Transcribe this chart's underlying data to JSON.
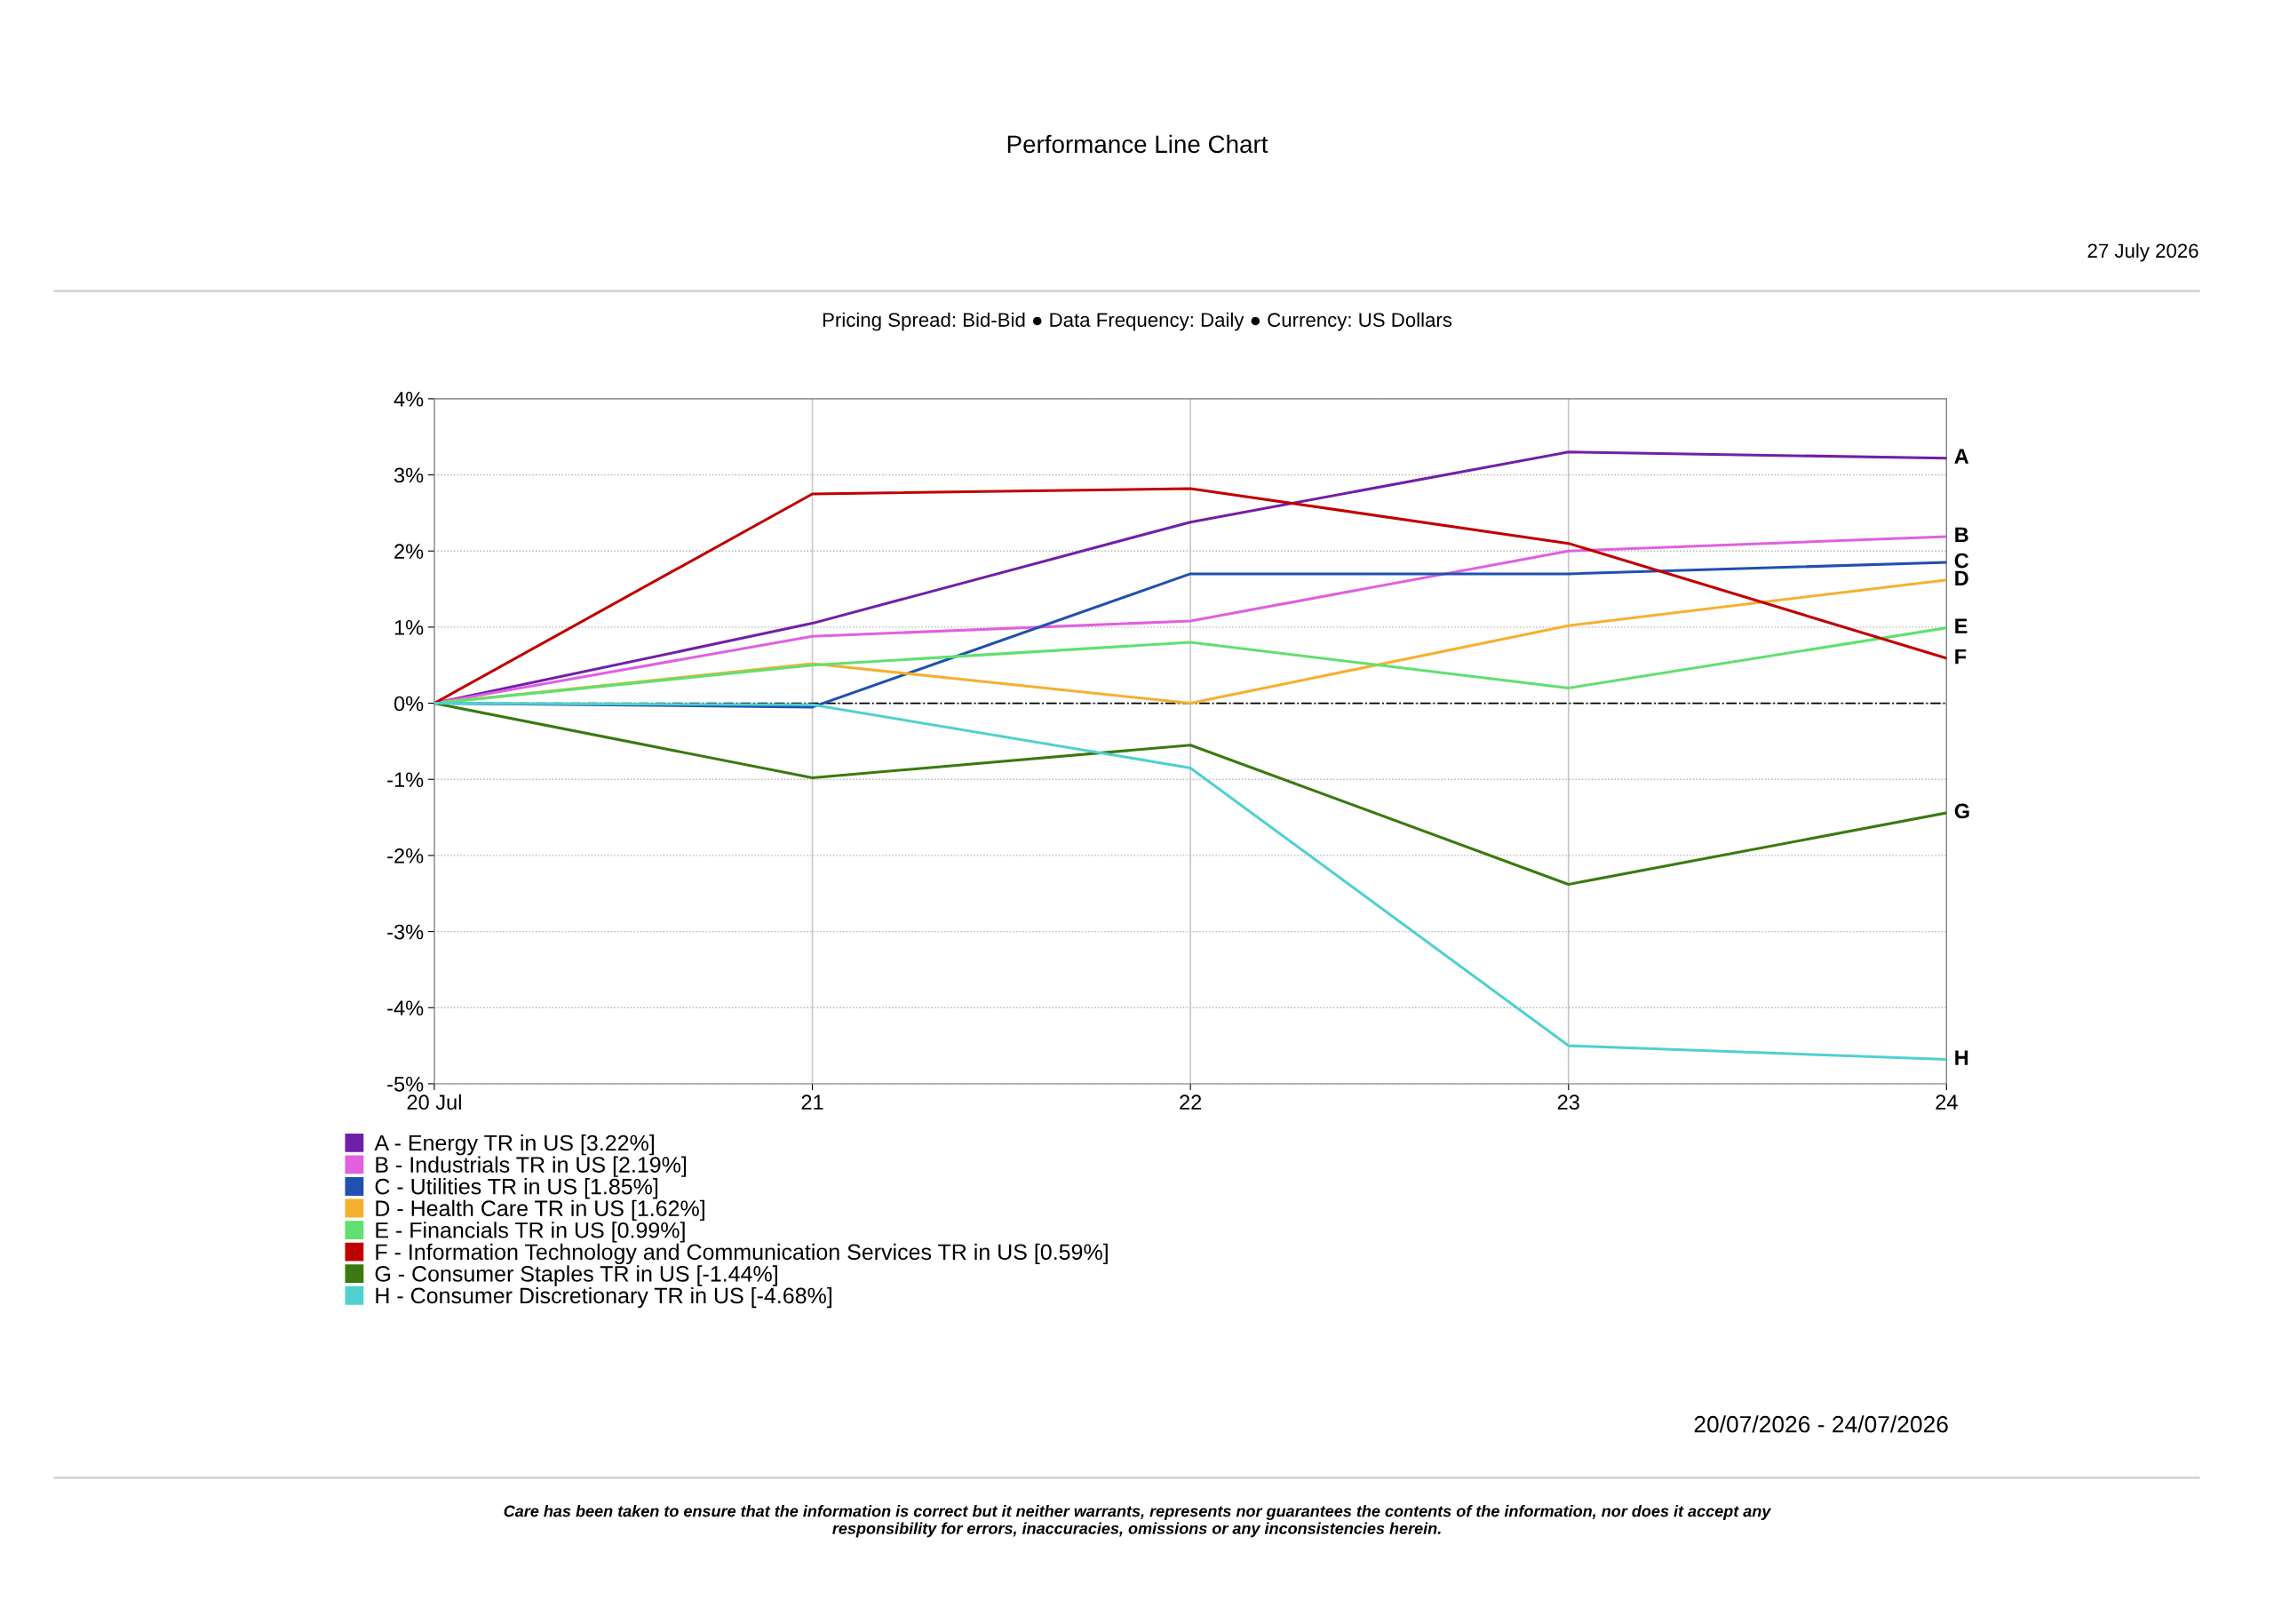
{
  "chart_data": {
    "type": "line",
    "title": "Performance Line Chart",
    "subtitle": "Pricing Spread: Bid-Bid ● Data Frequency: Daily ● Currency: US Dollars",
    "x": [
      "2026-07-20",
      "2026-07-21",
      "2026-07-22",
      "2026-07-23",
      "2026-07-24"
    ],
    "series": [
      {
        "name": "A - Energy TR in US [3.22%]",
        "color": "#7020a8",
        "values": [
          0,
          1.05,
          2.38,
          3.3,
          3.22
        ]
      },
      {
        "name": "B - Industrials TR in US [2.19%]",
        "color": "#e060e0",
        "values": [
          0,
          0.88,
          1.08,
          2.0,
          2.19
        ]
      },
      {
        "name": "C - Utilities TR in US [1.85%]",
        "color": "#2050b0",
        "values": [
          0,
          -0.05,
          1.7,
          1.7,
          1.85
        ]
      },
      {
        "name": "D - Health Care TR in US [1.62%]",
        "color": "#f5b030",
        "values": [
          0,
          0.52,
          0.0,
          1.02,
          1.62
        ]
      },
      {
        "name": "E - Financials TR in US [0.99%]",
        "color": "#60e070",
        "values": [
          0,
          0.5,
          0.8,
          0.2,
          0.99
        ]
      },
      {
        "name": "F - Information Technology and Communication Services TR in US [0.59%]",
        "color": "#c00000",
        "values": [
          0,
          2.75,
          2.82,
          2.1,
          0.59
        ]
      },
      {
        "name": "G - Consumer Staples TR in US [-1.44%]",
        "color": "#3a7a10",
        "values": [
          0,
          -0.98,
          -0.55,
          -2.38,
          -1.44
        ]
      },
      {
        "name": "H - Consumer Discretionary TR in US [-4.68%]",
        "color": "#50d0d0",
        "values": [
          0,
          -0.02,
          -0.85,
          -4.5,
          -4.68
        ]
      }
    ],
    "xlim": [
      "2026-07-20",
      "2026-07-24"
    ],
    "xticks": [
      {
        "value": "2026-07-20",
        "label": "20 Jul"
      },
      {
        "value": "2026-07-21",
        "label": "21"
      },
      {
        "value": "2026-07-22",
        "label": "22"
      },
      {
        "value": "2026-07-23",
        "label": "23"
      },
      {
        "value": "2026-07-24",
        "label": "24"
      }
    ],
    "ylim": [
      -5,
      4
    ],
    "yticks": [
      {
        "value": -5,
        "label": "-5%"
      },
      {
        "value": -4,
        "label": "-4%"
      },
      {
        "value": -3,
        "label": "-3%"
      },
      {
        "value": -2,
        "label": "-2%"
      },
      {
        "value": -1,
        "label": "-1%"
      },
      {
        "value": 0,
        "label": "0%"
      },
      {
        "value": 1,
        "label": "1%"
      },
      {
        "value": 2,
        "label": "2%"
      },
      {
        "value": 3,
        "label": "3%"
      },
      {
        "value": 4,
        "label": "4%"
      }
    ],
    "ref_lines": [
      {
        "axis": "y",
        "value": 0,
        "color": "#000000",
        "line_style": "dashdot"
      }
    ],
    "grid": true,
    "legend": "bottom",
    "marker": "none",
    "line_style": "solid",
    "annotations": [
      "27 July 2026",
      {
        "text": "A",
        "x": "2026-07-24",
        "y": 3.22
      },
      {
        "text": "B",
        "x": "2026-07-24",
        "y": 2.19
      },
      {
        "text": "C",
        "x": "2026-07-24",
        "y": 1.85
      },
      {
        "text": "D",
        "x": "2026-07-24",
        "y": 1.62
      },
      {
        "text": "E",
        "x": "2026-07-24",
        "y": 0.99
      },
      {
        "text": "F",
        "x": "2026-07-24",
        "y": 0.59
      },
      {
        "text": "G",
        "x": "2026-07-24",
        "y": -1.44
      },
      {
        "text": "H",
        "x": "2026-07-24",
        "y": -4.68
      },
      "20/07/2026 - 24/07/2026",
      "Care has been taken to ensure that the information is correct but it neither warrants, represents nor guarantees the contents of the information, nor does it accept any responsibility for errors, inaccuracies, omissions or any inconsistencies herein."
    ]
  }
}
